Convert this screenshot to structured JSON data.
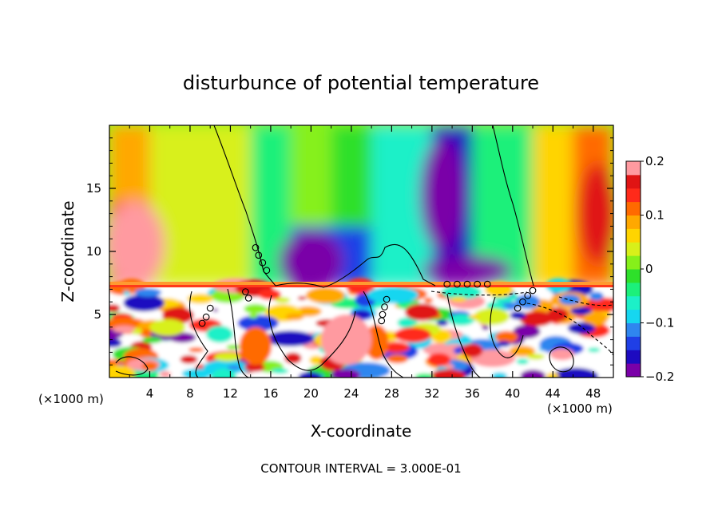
{
  "chart_data": {
    "type": "heatmap",
    "title": "disturbunce of potential temperature",
    "xlabel": "X-coordinate",
    "ylabel": "Z-coordinate",
    "x_unit": "(×1000 m)",
    "x_unit_right": "(×1000 m)",
    "footer": "CONTOUR INTERVAL = 3.000E-01",
    "xlim": [
      0,
      50
    ],
    "ylim": [
      0,
      20
    ],
    "x_ticks": [
      4,
      8,
      12,
      16,
      20,
      24,
      28,
      32,
      36,
      40,
      44,
      48
    ],
    "y_ticks": [
      5,
      10,
      15
    ],
    "colorbar": {
      "range": [
        -0.2,
        0.2
      ],
      "ticks": [
        {
          "value": 0.2,
          "label": "0.2"
        },
        {
          "value": 0.1,
          "label": "0.1"
        },
        {
          "value": 0.0,
          "label": "0"
        },
        {
          "value": -0.1,
          "label": "−0.1"
        },
        {
          "value": -0.2,
          "label": "−0.2"
        }
      ],
      "colors": [
        "#7a00a8",
        "#1d0ac0",
        "#1f3fe6",
        "#2f86ef",
        "#16d6f0",
        "#1cf0c8",
        "#1cf07a",
        "#2ee02a",
        "#86f01a",
        "#d8f01a",
        "#ffd400",
        "#ffa800",
        "#ff6a00",
        "#ff2a1a",
        "#e01414",
        "#ff9aa0"
      ]
    },
    "field_upper": {
      "z_range": [
        7.3,
        20
      ],
      "cells": [
        {
          "x": [
            0,
            6
          ],
          "z": [
            7.3,
            14
          ],
          "value": 0.15
        },
        {
          "x": [
            0,
            4
          ],
          "z": [
            14,
            20
          ],
          "value": 0.08
        },
        {
          "x": [
            4,
            14
          ],
          "z": [
            7.3,
            20
          ],
          "value": 0.03
        },
        {
          "x": [
            14,
            18
          ],
          "z": [
            7.3,
            20
          ],
          "value": -0.03
        },
        {
          "x": [
            18,
            26
          ],
          "z": [
            7.3,
            12
          ],
          "value": -0.14
        },
        {
          "x": [
            22,
            26
          ],
          "z": [
            12,
            20
          ],
          "value": -0.02
        },
        {
          "x": [
            26,
            32
          ],
          "z": [
            7.3,
            20
          ],
          "value": -0.07
        },
        {
          "x": [
            32,
            36
          ],
          "z": [
            7.3,
            20
          ],
          "value": -0.16
        },
        {
          "x": [
            36,
            42
          ],
          "z": [
            7.3,
            20
          ],
          "value": -0.05
        },
        {
          "x": [
            42,
            46
          ],
          "z": [
            7.3,
            20
          ],
          "value": 0.06
        },
        {
          "x": [
            46,
            50
          ],
          "z": [
            7.3,
            20
          ],
          "value": 0.12
        }
      ]
    },
    "field_lower": {
      "z_range": [
        0,
        7.3
      ],
      "value_range": [
        -0.2,
        0.2
      ]
    }
  }
}
